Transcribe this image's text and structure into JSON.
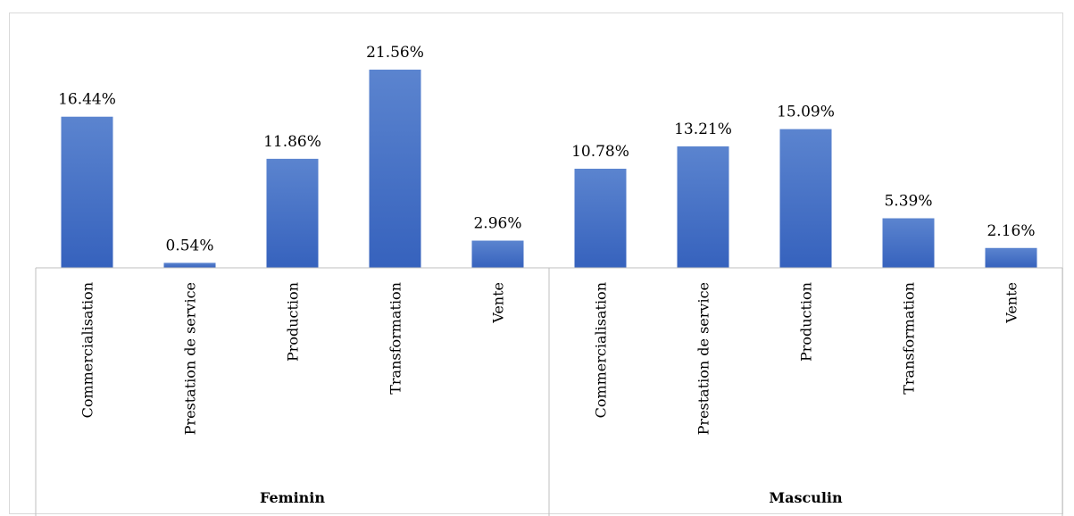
{
  "chart_data": {
    "type": "bar",
    "groups": [
      {
        "name": "Feminin",
        "categories": [
          "Commercialisation",
          "Prestation de service",
          "Production",
          "Transformation",
          "Vente"
        ],
        "values": [
          16.44,
          0.54,
          11.86,
          21.56,
          2.96
        ],
        "labels": [
          "16.44%",
          "0.54%",
          "11.86%",
          "21.56%",
          "2.96%"
        ]
      },
      {
        "name": "Masculin",
        "categories": [
          "Commercialisation",
          "Prestation de service",
          "Production",
          "Transformation",
          "Vente"
        ],
        "values": [
          10.78,
          13.21,
          15.09,
          5.39,
          2.16
        ],
        "labels": [
          "10.78%",
          "13.21%",
          "15.09%",
          "5.39%",
          "2.16%"
        ]
      }
    ],
    "ylim": [
      0,
      21.56
    ],
    "bar_color": "#4472C4",
    "grid": false,
    "legend": "none"
  }
}
